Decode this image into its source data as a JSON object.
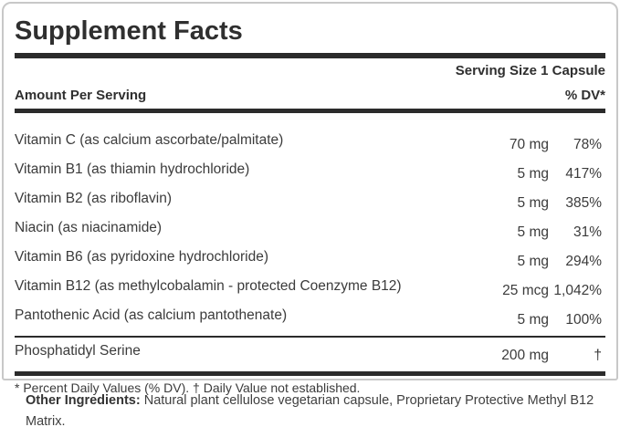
{
  "title": "Supplement Facts",
  "serving_size": "Serving Size 1 Capsule",
  "columns": {
    "amount_header": "Amount Per Serving",
    "dv_header": "% DV*"
  },
  "rows": [
    {
      "label": "Vitamin C (as calcium ascorbate/palmitate)",
      "amount": "70 mg",
      "dv": "78%"
    },
    {
      "label": "Vitamin B1 (as thiamin hydrochloride)",
      "amount": "5 mg",
      "dv": "417%"
    },
    {
      "label": "Vitamin B2 (as riboflavin)",
      "amount": "5 mg",
      "dv": "385%"
    },
    {
      "label": "Niacin (as niacinamide)",
      "amount": "5 mg",
      "dv": "31%"
    },
    {
      "label": "Vitamin B6 (as pyridoxine hydrochloride)",
      "amount": "5 mg",
      "dv": "294%"
    },
    {
      "label": "Vitamin B12 (as methylcobalamin - protected Coenzyme B12)",
      "amount": "25 mcg",
      "dv": "1,042%"
    },
    {
      "label": "Pantothenic Acid (as calcium pantothenate)",
      "amount": "5 mg",
      "dv": "100%"
    }
  ],
  "separated_rows": [
    {
      "label": "Phosphatidyl Serine",
      "amount": "200 mg",
      "dv": "†"
    }
  ],
  "footnote": "* Percent Daily Values (% DV). † Daily Value not established.",
  "other_ingredients": {
    "label": "Other Ingredients:",
    "text": " Natural plant cellulose vegetarian capsule, Proprietary Protective Methyl B12 Matrix."
  },
  "colors": {
    "background": "#ffffff",
    "text": "#3b3b3b",
    "heading_text": "#2f2f2f",
    "bar": "#2b2b2b",
    "border": "#c8c8c8"
  }
}
